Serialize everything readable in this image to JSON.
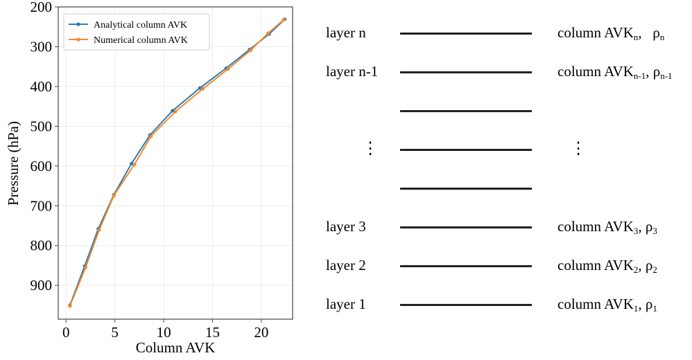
{
  "chart_data": {
    "type": "line",
    "title": "",
    "xlabel": "Column AVK",
    "ylabel": "Pressure (hPa)",
    "xlim": [
      -0.8,
      23.2
    ],
    "ylim": [
      985,
      200
    ],
    "y_inverted": true,
    "x_ticks": [
      0,
      5,
      10,
      15,
      20
    ],
    "y_ticks": [
      200,
      300,
      400,
      500,
      600,
      700,
      800,
      900
    ],
    "x_tick_labels": [
      "0",
      "5",
      "10",
      "15",
      "20"
    ],
    "y_tick_labels": [
      "200",
      "300",
      "400",
      "500",
      "600",
      "700",
      "800",
      "900"
    ],
    "grid": true,
    "legend_position": "top-left",
    "series": [
      {
        "name": "Analytical column AVK",
        "color": "#2b7bba",
        "points": [
          [
            0.4,
            950
          ],
          [
            1.9,
            852
          ],
          [
            3.3,
            758
          ],
          [
            4.9,
            672
          ],
          [
            6.7,
            594
          ],
          [
            8.6,
            522
          ],
          [
            10.9,
            461
          ],
          [
            13.7,
            404
          ],
          [
            16.4,
            354
          ],
          [
            18.8,
            307
          ],
          [
            20.8,
            268
          ],
          [
            22.4,
            231
          ]
        ]
      },
      {
        "name": "Numerical column AVK",
        "color": "#f28a25",
        "points": [
          [
            0.4,
            952
          ],
          [
            2.0,
            855
          ],
          [
            3.4,
            760
          ],
          [
            4.9,
            674
          ],
          [
            7.0,
            596
          ],
          [
            8.7,
            525
          ],
          [
            11.2,
            463
          ],
          [
            14.0,
            406
          ],
          [
            16.6,
            356
          ],
          [
            18.9,
            309
          ],
          [
            20.7,
            266
          ],
          [
            22.3,
            232
          ]
        ]
      }
    ]
  },
  "diagram": {
    "layers": [
      {
        "label": "layer n",
        "col": "column AVK",
        "col_sub": "n",
        "rho": "ρ",
        "rho_sub": "n",
        "sep": ",   "
      },
      {
        "label": "layer n-1",
        "col": "column AVK",
        "col_sub": "n-1",
        "rho": "ρ",
        "rho_sub": "n-1",
        "sep": ", "
      },
      {
        "label": "layer 3",
        "col": "column AVK",
        "col_sub": "3",
        "rho": "ρ",
        "rho_sub": "3",
        "sep": ", "
      },
      {
        "label": "layer 2",
        "col": "column AVK",
        "col_sub": "2",
        "rho": "ρ",
        "rho_sub": "2",
        "sep": ", "
      },
      {
        "label": "layer 1",
        "col": "column AVK",
        "col_sub": "1",
        "rho": "ρ",
        "rho_sub": "1",
        "sep": ", "
      }
    ],
    "ellipsis": "⋮"
  }
}
